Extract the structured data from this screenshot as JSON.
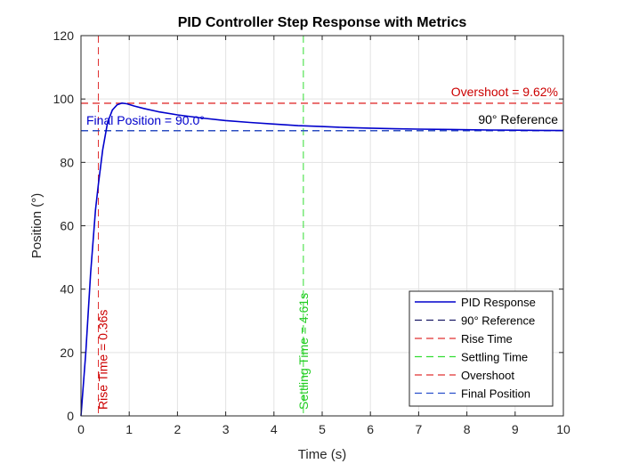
{
  "chart_data": {
    "type": "line",
    "title": "PID Controller Step Response with Metrics",
    "xlabel": "Time (s)",
    "ylabel": "Position (°)",
    "xlim": [
      0,
      10
    ],
    "ylim": [
      0,
      120
    ],
    "xticks": [
      0,
      1,
      2,
      3,
      4,
      5,
      6,
      7,
      8,
      9,
      10
    ],
    "yticks": [
      0,
      20,
      40,
      60,
      80,
      100,
      120
    ],
    "grid": true,
    "legend_position": "bottom-right",
    "series": [
      {
        "name": "PID Response",
        "color": "#0000CC",
        "style": "solid",
        "x": [
          0,
          0.1,
          0.2,
          0.3,
          0.36,
          0.45,
          0.55,
          0.65,
          0.75,
          0.85,
          0.95,
          1.1,
          1.3,
          1.6,
          2.0,
          2.5,
          3.0,
          3.5,
          4.0,
          4.5,
          5.0,
          5.5,
          6.0,
          6.5,
          7.0,
          7.5,
          8.0,
          8.5,
          9.0,
          9.5,
          10.0
        ],
        "y": [
          0,
          20,
          45,
          65,
          73,
          84,
          92.5,
          96.5,
          98.2,
          98.7,
          98.5,
          97.8,
          97.0,
          96.0,
          95.0,
          94.0,
          93.2,
          92.6,
          92.1,
          91.6,
          91.3,
          91.0,
          90.8,
          90.6,
          90.5,
          90.4,
          90.3,
          90.2,
          90.15,
          90.1,
          90.05
        ]
      }
    ],
    "reference_lines": [
      {
        "name": "90° Reference",
        "orientation": "horizontal",
        "value": 90,
        "color": "#1a1a66",
        "style": "dashed"
      },
      {
        "name": "Rise Time",
        "orientation": "vertical",
        "value": 0.36,
        "color": "#e03030",
        "style": "dashed"
      },
      {
        "name": "Settling Time",
        "orientation": "vertical",
        "value": 4.61,
        "color": "#33dd33",
        "style": "dashed"
      },
      {
        "name": "Overshoot",
        "orientation": "horizontal",
        "value": 98.66,
        "color": "#e03030",
        "style": "dashed"
      },
      {
        "name": "Final Position",
        "orientation": "horizontal",
        "value": 90,
        "color": "#2a50cc",
        "style": "dashed"
      }
    ],
    "annotations": [
      {
        "text": "Overshoot = 9.62%",
        "color": "#cc0000"
      },
      {
        "text": "90° Reference",
        "color": "#000000"
      },
      {
        "text": "Final Position = 90.0°",
        "color": "#0000cc"
      },
      {
        "text": "Rise Time = 0.36s",
        "color": "#cc0000"
      },
      {
        "text": "Settling Time = 4.61s",
        "color": "#22cc22"
      }
    ]
  }
}
